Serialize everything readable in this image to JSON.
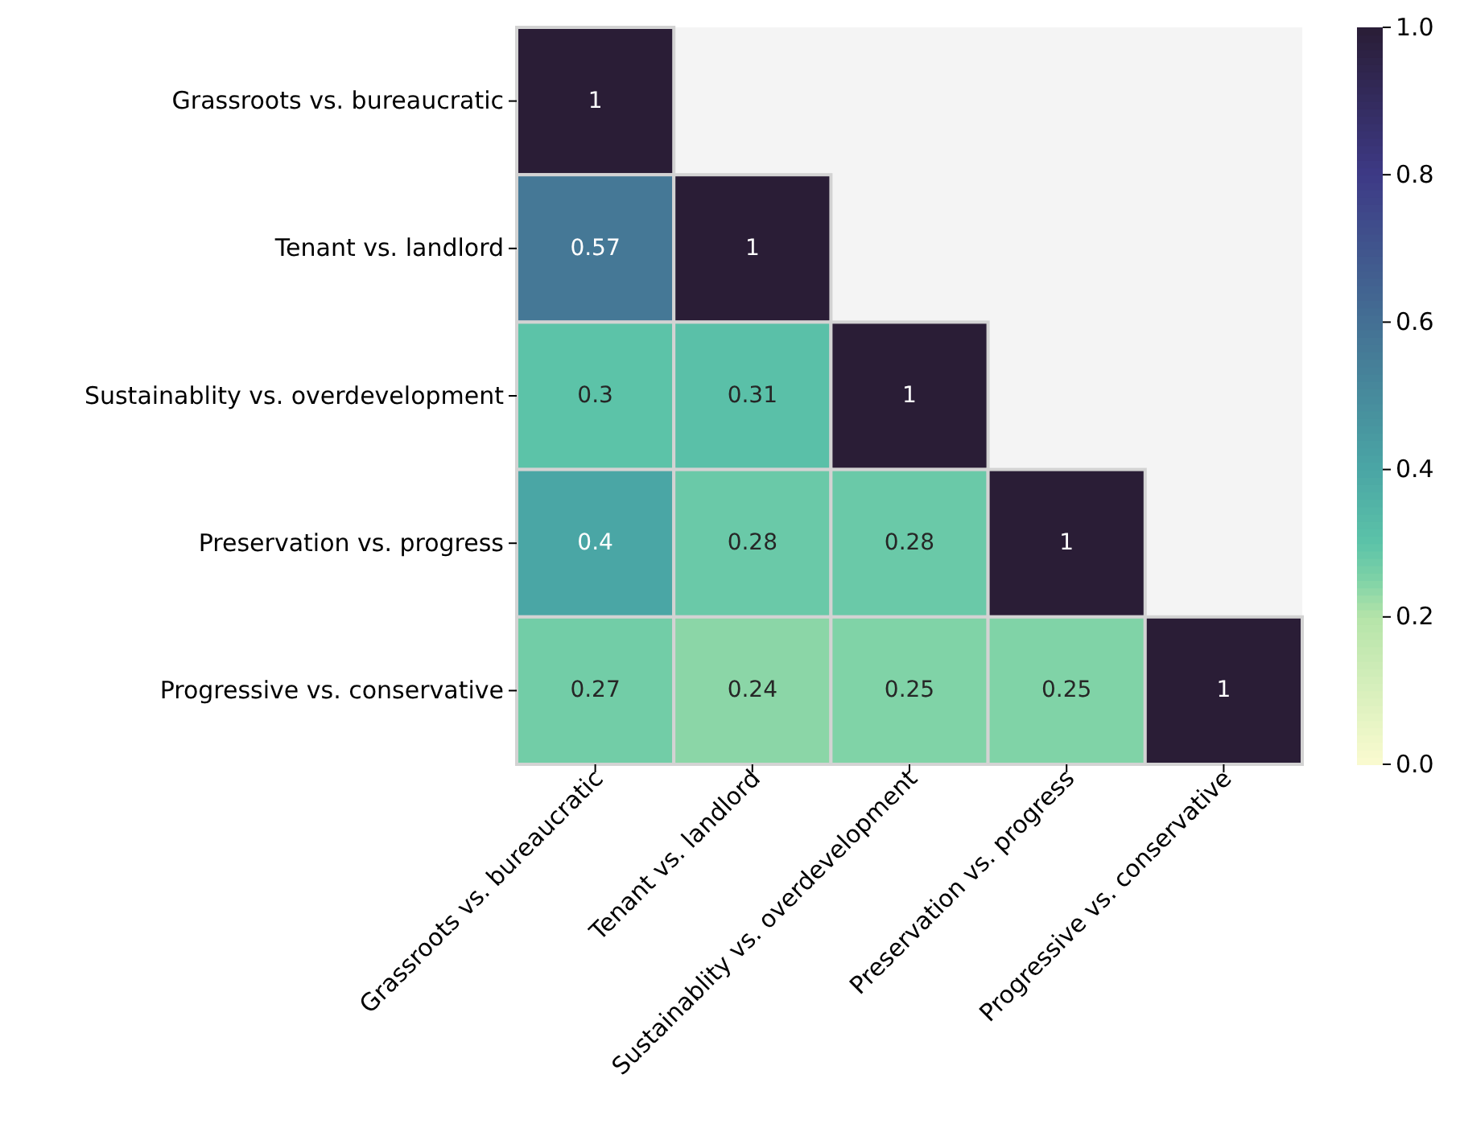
{
  "chart_data": {
    "type": "heatmap",
    "categories": [
      "Grassroots vs. bureaucratic",
      "Tenant vs. landlord",
      "Sustainablity vs. overdevelopment",
      "Preservation vs. progress",
      "Progressive vs. conservative"
    ],
    "y_categories": [
      "Grassroots vs. bureaucratic",
      "Tenant vs. landlord",
      "Sustainablity vs. overdevelopment",
      "Preservation vs. progress",
      "Progressive vs. conservative"
    ],
    "cells": [
      [
        1,
        null,
        null,
        null,
        null
      ],
      [
        0.57,
        1,
        null,
        null,
        null
      ],
      [
        0.3,
        0.31,
        1,
        null,
        null
      ],
      [
        0.4,
        0.28,
        0.28,
        1,
        null
      ],
      [
        0.27,
        0.24,
        0.25,
        0.25,
        1
      ]
    ],
    "data_labels": true,
    "clim": [
      0,
      1
    ],
    "cticks": [
      {
        "value": 0,
        "label": "0.0"
      },
      {
        "value": 0.2,
        "label": "0.2"
      },
      {
        "value": 0.4,
        "label": "0.4"
      },
      {
        "value": 0.6,
        "label": "0.6"
      },
      {
        "value": 0.8,
        "label": "0.8"
      },
      {
        "value": 1,
        "label": "1.0"
      }
    ]
  }
}
